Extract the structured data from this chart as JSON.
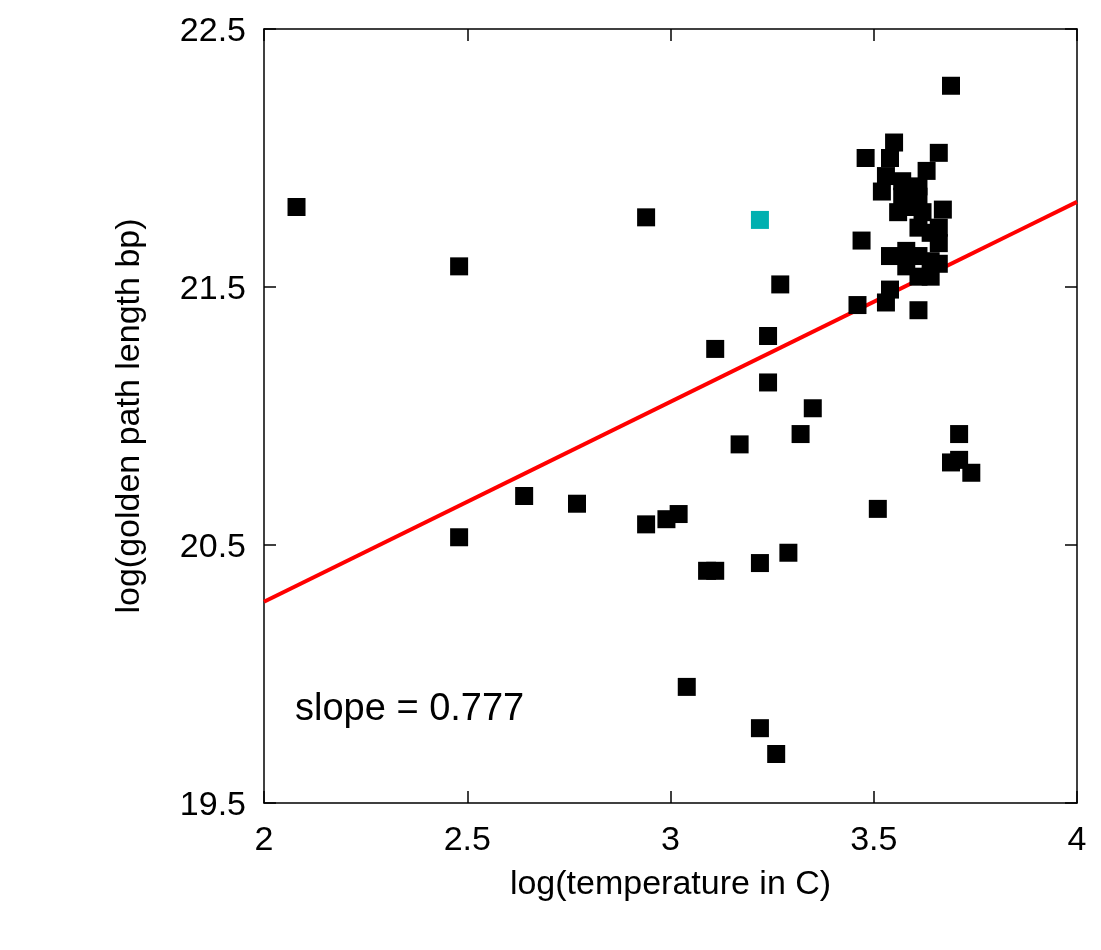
{
  "chart_data": {
    "type": "scatter",
    "xlabel": "log(temperature in C)",
    "ylabel": "log(golden path length bp)",
    "xlim": [
      2,
      4
    ],
    "xticks": [
      2,
      2.5,
      3,
      3.5,
      4
    ],
    "ylim": [
      19.5,
      22.5
    ],
    "yticks": [
      19.5,
      20.5,
      21.5,
      22.5
    ],
    "marker": "square",
    "annotations": [
      "slope = 0.777"
    ],
    "series": [
      {
        "color": "#000000",
        "x": [
          2.08,
          2.48,
          2.94,
          2.48,
          2.64,
          2.77,
          2.94,
          2.99,
          3.02,
          3.09,
          3.11,
          3.22,
          3.29,
          3.04,
          3.22,
          3.26,
          3.17,
          3.32,
          3.35,
          3.24,
          3.24,
          3.11,
          3.27,
          3.51,
          3.71,
          3.69,
          3.71,
          3.74,
          3.69,
          3.55,
          3.48,
          3.54,
          3.66,
          3.53,
          3.63,
          3.52,
          3.57,
          3.61,
          3.57,
          3.61,
          3.56,
          3.58,
          3.62,
          3.67,
          3.61,
          3.66,
          3.64,
          3.66,
          3.47,
          3.54,
          3.58,
          3.61,
          3.64,
          3.66,
          3.58,
          3.61,
          3.64,
          3.54,
          3.46,
          3.53,
          3.61
        ],
        "values": [
          21.81,
          21.58,
          21.77,
          20.53,
          20.69,
          20.66,
          20.58,
          20.6,
          20.62,
          20.4,
          20.4,
          20.43,
          20.47,
          19.95,
          19.79,
          19.69,
          20.89,
          20.93,
          21.03,
          21.13,
          21.31,
          21.26,
          21.51,
          20.64,
          20.93,
          20.82,
          20.83,
          20.78,
          22.28,
          22.06,
          22.0,
          22.0,
          22.02,
          21.93,
          21.95,
          21.87,
          21.91,
          21.89,
          21.85,
          21.85,
          21.79,
          21.81,
          21.79,
          21.8,
          21.73,
          21.73,
          21.71,
          21.67,
          21.68,
          21.62,
          21.64,
          21.62,
          21.6,
          21.59,
          21.58,
          21.54,
          21.54,
          21.49,
          21.43,
          21.44,
          21.41
        ]
      },
      {
        "color": "#00b0b0",
        "x": [
          3.22
        ],
        "values": [
          21.76
        ]
      },
      {
        "type": "line",
        "color": "#ff0000",
        "marker": "none",
        "x": [
          2,
          4
        ],
        "values": [
          20.28,
          21.83
        ]
      }
    ]
  }
}
